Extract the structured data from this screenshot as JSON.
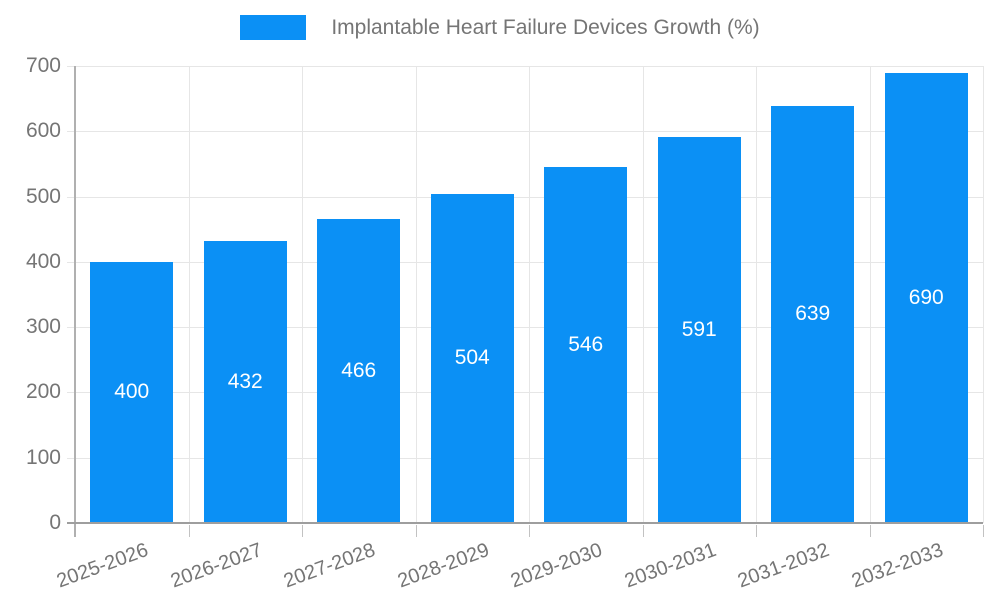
{
  "legend": {
    "label": "Implantable Heart Failure Devices Growth (%)"
  },
  "colors": {
    "bar": "#0b90f5",
    "grid": "#e6e6e6",
    "y_axis_line": "#b0b0b0",
    "baseline": "#9e9e9e",
    "tick_text": "#757575",
    "value_label": "#ffffff",
    "background": "#ffffff"
  },
  "chart_data": {
    "type": "bar",
    "title": "Implantable Heart Failure Devices Growth (%)",
    "categories": [
      "2025-2026",
      "2026-2027",
      "2027-2028",
      "2028-2029",
      "2029-2030",
      "2030-2031",
      "2031-2032",
      "2032-2033"
    ],
    "values": [
      400,
      432,
      466,
      504,
      546,
      591,
      639,
      690
    ],
    "xlabel": "",
    "ylabel": "",
    "ylim": [
      0,
      700
    ],
    "yticks": [
      0,
      100,
      200,
      300,
      400,
      500,
      600,
      700
    ],
    "grid": true,
    "legend_position": "top",
    "value_labels": "inside-center",
    "x_label_rotation_deg": -20
  }
}
